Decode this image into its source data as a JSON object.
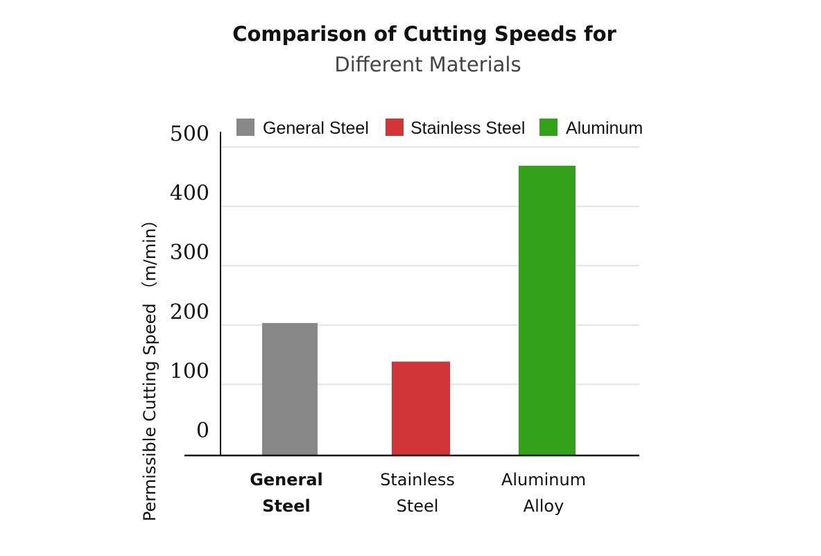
{
  "chart_data": {
    "type": "bar",
    "title": "Comparison of Cutting Speeds for",
    "subtitle": "Different Materials",
    "ylabel": "Permissible Cutting Speed （m/min）",
    "xlabel": "",
    "categories": [
      "General Steel",
      "Stainless Steel",
      "Aluminum Alloy"
    ],
    "category_lines": [
      [
        "General",
        "Steel"
      ],
      [
        "Stainless",
        "Steel"
      ],
      [
        "Aluminum",
        "Alloy"
      ]
    ],
    "values": [
      180,
      115,
      445
    ],
    "colors": [
      "#888888",
      "#d03538",
      "#34a11a"
    ],
    "legend": [
      "General Steel",
      "Stainless Steel",
      "Aluminum"
    ],
    "legend_placement": "top",
    "yticks": [
      0,
      100,
      200,
      300,
      400,
      500
    ],
    "ylim": [
      0,
      500
    ],
    "grid": true
  }
}
